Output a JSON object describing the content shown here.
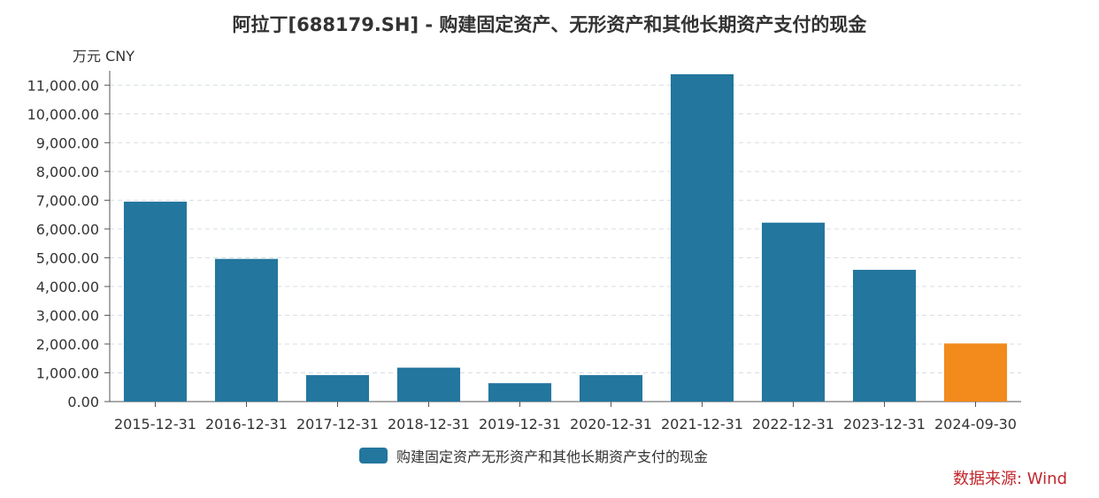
{
  "title": "阿拉丁[688179.SH] - 购建固定资产、无形资产和其他长期资产支付的现金",
  "unit": "万元  CNY",
  "source": "数据来源: Wind",
  "colors": {
    "primary": "#23769e",
    "highlight": "#f28a1c",
    "source_text": "#c0272d",
    "grid": "#d6dde3",
    "axis": "#555555"
  },
  "chart_data": {
    "type": "bar",
    "title": "阿拉丁[688179.SH] - 购建固定资产、无形资产和其他长期资产支付的现金",
    "ylabel": "万元  CNY",
    "xlabel": "",
    "categories": [
      "2015-12-31",
      "2016-12-31",
      "2017-12-31",
      "2018-12-31",
      "2019-12-31",
      "2020-12-31",
      "2021-12-31",
      "2022-12-31",
      "2023-12-31",
      "2024-09-30"
    ],
    "series": [
      {
        "name": "购建固定资产无形资产和其他长期资产支付的现金",
        "values": [
          6950,
          4960,
          920,
          1180,
          640,
          920,
          11380,
          6220,
          4580,
          2020
        ]
      }
    ],
    "highlight_index": 9,
    "ylim": [
      0,
      11500
    ],
    "yticks": [
      0,
      1000,
      2000,
      3000,
      4000,
      5000,
      6000,
      7000,
      8000,
      9000,
      10000,
      11000
    ],
    "ytick_labels": [
      "0.00",
      "1,000.00",
      "2,000.00",
      "3,000.00",
      "4,000.00",
      "5,000.00",
      "6,000.00",
      "7,000.00",
      "8,000.00",
      "9,000.00",
      "10,000.00",
      "11,000.00"
    ],
    "grid": true,
    "legend_position": "bottom-center"
  }
}
